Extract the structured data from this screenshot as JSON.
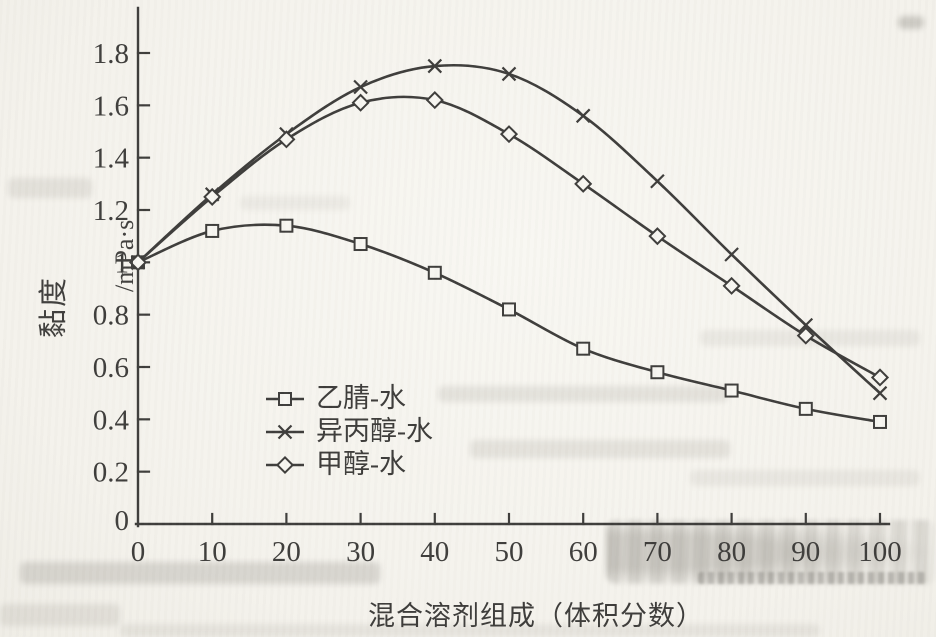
{
  "colors": {
    "ink": "#3d3c3a",
    "paper": "#f7f6f1",
    "bleed": "#b9b5ac"
  },
  "chart_data": {
    "type": "line",
    "title": "",
    "xlabel": "混合溶剂组成（体积分数）",
    "ylabel": "黏度/mPa·s",
    "ylabel_cn": "黏度",
    "ylabel_unit": "/mPa·s",
    "xlim": [
      0,
      100
    ],
    "ylim": [
      0,
      1.8
    ],
    "grid": false,
    "legend_position": "inside-lower-left",
    "x": [
      0,
      10,
      20,
      30,
      40,
      50,
      60,
      70,
      80,
      90,
      100
    ],
    "x_ticks": [
      0,
      10,
      20,
      30,
      40,
      50,
      60,
      70,
      80,
      90,
      100
    ],
    "x_tick_labels": [
      "0",
      "10",
      "20",
      "30",
      "40",
      "50",
      "60",
      "70",
      "80",
      "90",
      "100"
    ],
    "y_ticks": [
      0,
      0.2,
      0.4,
      0.6,
      0.8,
      1.0,
      1.2,
      1.4,
      1.6,
      1.8
    ],
    "y_tick_labels": [
      "0",
      "0.2",
      "0.4",
      "0.6",
      "0.8",
      "1",
      "1.2",
      "1.4",
      "1.6",
      "1.8"
    ],
    "series": [
      {
        "id": "acetonitrile-water",
        "name": "乙腈-水",
        "marker": "square",
        "values": [
          1.0,
          1.12,
          1.14,
          1.07,
          0.96,
          0.82,
          0.67,
          0.58,
          0.51,
          0.44,
          0.39
        ]
      },
      {
        "id": "isopropanol-water",
        "name": "异丙醇-水",
        "marker": "x",
        "values": [
          1.0,
          1.26,
          1.49,
          1.67,
          1.75,
          1.72,
          1.56,
          1.31,
          1.03,
          0.76,
          0.5
        ]
      },
      {
        "id": "methanol-water",
        "name": "甲醇-水",
        "marker": "diamond",
        "values": [
          1.0,
          1.25,
          1.47,
          1.61,
          1.62,
          1.49,
          1.3,
          1.1,
          0.91,
          0.72,
          0.56
        ]
      }
    ]
  }
}
